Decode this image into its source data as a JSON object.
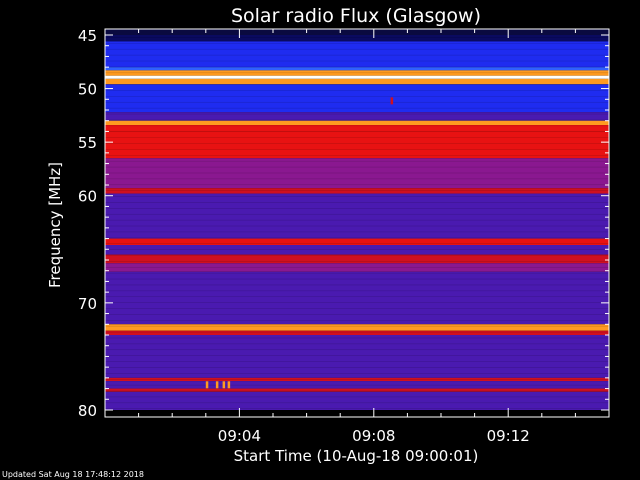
{
  "chart_data": {
    "type": "heatmap",
    "title": "Solar radio Flux (Glasgow)",
    "xlabel": "Start Time (10-Aug-18 09:00:01)",
    "ylabel": "Frequency [MHz]",
    "x_ticks": [
      "09:04",
      "09:08",
      "09:12"
    ],
    "x_tick_minutes": [
      4,
      8,
      12
    ],
    "x_range_minutes": [
      0,
      15
    ],
    "y_ticks": [
      "45",
      "50",
      "55",
      "60",
      "70",
      "80"
    ],
    "y_tick_values": [
      45,
      50,
      55,
      60,
      70,
      80
    ],
    "ylim": [
      45,
      80
    ],
    "y_inverted": true,
    "colors": {
      "background": "#000000",
      "low": "#1818c8",
      "mid": "#5a1aa8",
      "high": "#e01010",
      "peak": "#ffffff"
    },
    "bands": [
      {
        "f0": 45.0,
        "f1": 45.6,
        "level": "low"
      },
      {
        "f0": 45.6,
        "f1": 48.0,
        "level": "blue"
      },
      {
        "f0": 48.0,
        "f1": 48.3,
        "level": "bright-blue"
      },
      {
        "f0": 48.3,
        "f1": 48.8,
        "level": "orange"
      },
      {
        "f0": 48.8,
        "f1": 49.1,
        "level": "peak"
      },
      {
        "f0": 49.1,
        "f1": 49.6,
        "level": "orange"
      },
      {
        "f0": 49.6,
        "f1": 52.2,
        "level": "blue"
      },
      {
        "f0": 52.2,
        "f1": 53.0,
        "level": "mid"
      },
      {
        "f0": 53.0,
        "f1": 53.4,
        "level": "orange"
      },
      {
        "f0": 53.4,
        "f1": 54.0,
        "level": "high"
      },
      {
        "f0": 54.0,
        "f1": 56.5,
        "level": "high"
      },
      {
        "f0": 56.5,
        "f1": 59.3,
        "level": "mid-red"
      },
      {
        "f0": 59.3,
        "f1": 59.8,
        "level": "red"
      },
      {
        "f0": 59.8,
        "f1": 64.0,
        "level": "mid"
      },
      {
        "f0": 64.0,
        "f1": 64.6,
        "level": "high"
      },
      {
        "f0": 64.6,
        "f1": 65.5,
        "level": "mid"
      },
      {
        "f0": 65.5,
        "f1": 66.3,
        "level": "red"
      },
      {
        "f0": 66.3,
        "f1": 67.1,
        "level": "mid-red"
      },
      {
        "f0": 67.1,
        "f1": 72.0,
        "level": "mid"
      },
      {
        "f0": 72.0,
        "f1": 72.6,
        "level": "orange"
      },
      {
        "f0": 72.6,
        "f1": 73.0,
        "level": "red"
      },
      {
        "f0": 73.0,
        "f1": 77.0,
        "level": "mid"
      },
      {
        "f0": 77.0,
        "f1": 77.3,
        "level": "red"
      },
      {
        "f0": 77.3,
        "f1": 78.0,
        "level": "mid"
      },
      {
        "f0": 78.0,
        "f1": 78.3,
        "level": "red"
      },
      {
        "f0": 78.3,
        "f1": 80.0,
        "level": "mid"
      }
    ],
    "bursts": [
      {
        "t": 3.0,
        "f": 77.6,
        "level": "orange"
      },
      {
        "t": 3.3,
        "f": 77.6,
        "level": "orange"
      },
      {
        "t": 3.5,
        "f": 77.6,
        "level": "orange"
      },
      {
        "t": 3.65,
        "f": 77.6,
        "level": "orange"
      },
      {
        "t": 8.5,
        "f": 51.1,
        "level": "red"
      }
    ]
  },
  "footer_text": "Updated Sat Aug 18 17:48:12 2018"
}
